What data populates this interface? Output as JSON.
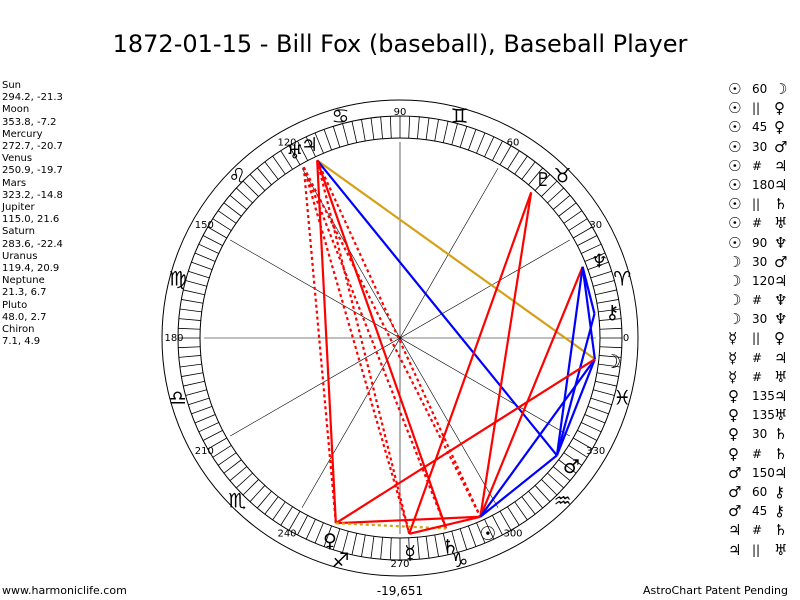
{
  "title": "1872-01-15 - Bill Fox (baseball), Baseball Player",
  "planets": [
    {
      "name": "Sun",
      "coords": "294.2, -21.3",
      "glyph": "☉",
      "color": "#000000"
    },
    {
      "name": "Moon",
      "coords": "353.8, -7.2",
      "glyph": "☽",
      "color": "#000000"
    },
    {
      "name": "Mercury",
      "coords": "272.7, -20.7",
      "glyph": "☿",
      "color": "#000000"
    },
    {
      "name": "Venus",
      "coords": "250.9, -19.7",
      "glyph": "♀",
      "color": "#000000"
    },
    {
      "name": "Mars",
      "coords": "323.2, -14.8",
      "glyph": "♂",
      "color": "#000000"
    },
    {
      "name": "Jupiter",
      "coords": "115.0, 21.6",
      "glyph": "♃",
      "color": "#000000"
    },
    {
      "name": "Saturn",
      "coords": "283.6, -22.4",
      "glyph": "♄",
      "color": "#000000"
    },
    {
      "name": "Uranus",
      "coords": "119.4, 20.9",
      "glyph": "♅",
      "color": "#000000"
    },
    {
      "name": "Neptune",
      "coords": "21.3, 6.7",
      "glyph": "♆",
      "color": "#000000"
    },
    {
      "name": "Pluto",
      "coords": "48.0, 2.7",
      "glyph": "♇",
      "color": "#000000"
    },
    {
      "name": "Chiron",
      "coords": "7.1, 4.9",
      "glyph": "⚷",
      "color": "#000000"
    }
  ],
  "wheel": {
    "degree_labels": [
      {
        "text": "0",
        "deg": 0
      },
      {
        "text": "30",
        "deg": 30
      },
      {
        "text": "60",
        "deg": 60
      },
      {
        "text": "90",
        "deg": 90
      },
      {
        "text": "120",
        "deg": 120
      },
      {
        "text": "150",
        "deg": 150
      },
      {
        "text": "180",
        "deg": 180
      },
      {
        "text": "210",
        "deg": 210
      },
      {
        "text": "240",
        "deg": 240
      },
      {
        "text": "270",
        "deg": 270
      },
      {
        "text": "300",
        "deg": 300
      },
      {
        "text": "330",
        "deg": 330
      }
    ],
    "zodiac": [
      {
        "sign": "aries",
        "glyph": "♈",
        "mid_deg": 15
      },
      {
        "sign": "taurus",
        "glyph": "♉",
        "mid_deg": 45
      },
      {
        "sign": "gemini",
        "glyph": "♊",
        "mid_deg": 75
      },
      {
        "sign": "cancer",
        "glyph": "♋",
        "mid_deg": 105
      },
      {
        "sign": "leo",
        "glyph": "♌",
        "mid_deg": 135
      },
      {
        "sign": "virgo",
        "glyph": "♍",
        "mid_deg": 165
      },
      {
        "sign": "libra",
        "glyph": "♎",
        "mid_deg": 195
      },
      {
        "sign": "scorpio",
        "glyph": "♏",
        "mid_deg": 225
      },
      {
        "sign": "sagittarius",
        "glyph": "♐",
        "mid_deg": 255
      },
      {
        "sign": "capricorn",
        "glyph": "♑",
        "mid_deg": 285
      },
      {
        "sign": "aquarius",
        "glyph": "♒",
        "mid_deg": 315
      },
      {
        "sign": "pisces",
        "glyph": "♓",
        "mid_deg": 345
      }
    ],
    "bottom_label": "-19,651",
    "aspect_lines": [
      {
        "p1": "Jupiter",
        "p2": "Moon",
        "kind": "trine",
        "color": "#d4a017",
        "style": "solid"
      },
      {
        "p1": "Jupiter",
        "p2": "Mars",
        "kind": "opposition",
        "color": "#0000ff",
        "style": "solid"
      },
      {
        "p1": "Jupiter",
        "p2": "Saturn",
        "kind": "opposition",
        "color": "#ff0000",
        "style": "solid"
      },
      {
        "p1": "Jupiter",
        "p2": "Sun",
        "kind": "opposition",
        "color": "#ff0000",
        "style": "dotted"
      },
      {
        "p1": "Jupiter",
        "p2": "Mercury",
        "kind": "opposition",
        "color": "#ff0000",
        "style": "dotted"
      },
      {
        "p1": "Jupiter",
        "p2": "Venus",
        "kind": "sesquiquadrate",
        "color": "#ff0000",
        "style": "solid"
      },
      {
        "p1": "Uranus",
        "p2": "Sun",
        "kind": "opposition",
        "color": "#ff0000",
        "style": "dotted"
      },
      {
        "p1": "Uranus",
        "p2": "Mercury",
        "kind": "opposition",
        "color": "#ff0000",
        "style": "dotted"
      },
      {
        "p1": "Uranus",
        "p2": "Saturn",
        "kind": "opposition",
        "color": "#ff0000",
        "style": "dotted"
      },
      {
        "p1": "Uranus",
        "p2": "Venus",
        "kind": "sesquiquadrate",
        "color": "#ff0000",
        "style": "dotted"
      },
      {
        "p1": "Pluto",
        "p2": "Sun",
        "kind": "square",
        "color": "#ff0000",
        "style": "solid"
      },
      {
        "p1": "Pluto",
        "p2": "Mercury",
        "kind": "square",
        "color": "#ff0000",
        "style": "solid"
      },
      {
        "p1": "Neptune",
        "p2": "Sun",
        "kind": "square",
        "color": "#ff0000",
        "style": "solid"
      },
      {
        "p1": "Neptune",
        "p2": "Moon",
        "kind": "sextile",
        "color": "#0000ff",
        "style": "solid"
      },
      {
        "p1": "Neptune",
        "p2": "Mars",
        "kind": "sextile",
        "color": "#0000ff",
        "style": "solid"
      },
      {
        "p1": "Neptune",
        "p2": "Chiron",
        "kind": "sextile",
        "color": "#0000ff",
        "style": "solid"
      },
      {
        "p1": "Chiron",
        "p2": "Mars",
        "kind": "sextile",
        "color": "#0000ff",
        "style": "solid"
      },
      {
        "p1": "Moon",
        "p2": "Sun",
        "kind": "sextile",
        "color": "#0000ff",
        "style": "solid"
      },
      {
        "p1": "Moon",
        "p2": "Mars",
        "kind": "semisextile",
        "color": "#0000ff",
        "style": "solid"
      },
      {
        "p1": "Moon",
        "p2": "Venus",
        "kind": "trine",
        "color": "#ff0000",
        "style": "solid"
      },
      {
        "p1": "Venus",
        "p2": "Sun",
        "kind": "semisquare",
        "color": "#ff0000",
        "style": "solid"
      },
      {
        "p1": "Venus",
        "p2": "Saturn",
        "kind": "semisextile",
        "color": "#d4a017",
        "style": "dotted"
      },
      {
        "p1": "Mars",
        "p2": "Sun",
        "kind": "semisextile",
        "color": "#0000ff",
        "style": "solid"
      },
      {
        "p1": "Mercury",
        "p2": "Sun",
        "kind": "conjunction",
        "color": "#ff0000",
        "style": "solid"
      }
    ]
  },
  "aspect_list": [
    {
      "p1": "☉",
      "sym": "60",
      "p2": "☽"
    },
    {
      "p1": "☉",
      "sym": "||",
      "p2": "♀"
    },
    {
      "p1": "☉",
      "sym": "45",
      "p2": "♀"
    },
    {
      "p1": "☉",
      "sym": "30",
      "p2": "♂"
    },
    {
      "p1": "☉",
      "sym": "#",
      "p2": "♃"
    },
    {
      "p1": "☉",
      "sym": "180",
      "p2": "♃"
    },
    {
      "p1": "☉",
      "sym": "||",
      "p2": "♄"
    },
    {
      "p1": "☉",
      "sym": "#",
      "p2": "♅"
    },
    {
      "p1": "☉",
      "sym": "90",
      "p2": "♆"
    },
    {
      "p1": "☽",
      "sym": "30",
      "p2": "♂"
    },
    {
      "p1": "☽",
      "sym": "120",
      "p2": "♃"
    },
    {
      "p1": "☽",
      "sym": "#",
      "p2": "♆"
    },
    {
      "p1": "☽",
      "sym": "30",
      "p2": "♆"
    },
    {
      "p1": "☿",
      "sym": "||",
      "p2": "♀"
    },
    {
      "p1": "☿",
      "sym": "#",
      "p2": "♃"
    },
    {
      "p1": "☿",
      "sym": "#",
      "p2": "♅"
    },
    {
      "p1": "♀",
      "sym": "135",
      "p2": "♃"
    },
    {
      "p1": "♀",
      "sym": "135",
      "p2": "♅"
    },
    {
      "p1": "♀",
      "sym": "30",
      "p2": "♄"
    },
    {
      "p1": "♀",
      "sym": "#",
      "p2": "♄"
    },
    {
      "p1": "♂",
      "sym": "150",
      "p2": "♃"
    },
    {
      "p1": "♂",
      "sym": "60",
      "p2": "⚷"
    },
    {
      "p1": "♂",
      "sym": "45",
      "p2": "⚷"
    },
    {
      "p1": "♃",
      "sym": "#",
      "p2": "♄"
    },
    {
      "p1": "♃",
      "sym": "||",
      "p2": "♅"
    }
  ],
  "footer": {
    "left": "www.harmoniclife.com",
    "right": "AstroChart Patent Pending"
  }
}
